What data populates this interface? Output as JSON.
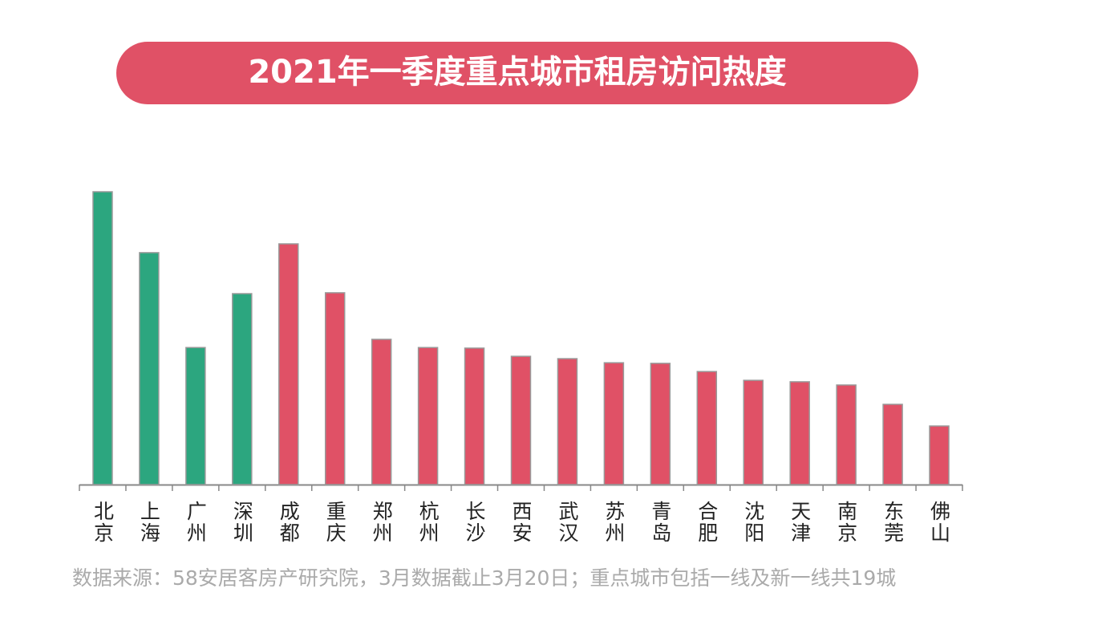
{
  "chart_data": {
    "type": "bar",
    "title": "2021年一季度重点城市租房访问热度",
    "categories": [
      "北京",
      "上海",
      "广州",
      "深圳",
      "成都",
      "重庆",
      "郑州",
      "杭州",
      "长沙",
      "西安",
      "武汉",
      "苏州",
      "青岛",
      "合肥",
      "沈阳",
      "天津",
      "南京",
      "东莞",
      "佛山"
    ],
    "values": [
      100,
      79.2,
      46.8,
      65.2,
      82.2,
      65.5,
      49.6,
      46.8,
      46.6,
      43.8,
      43.0,
      41.6,
      41.4,
      38.6,
      35.6,
      35.1,
      34.0,
      27.4,
      20.0
    ],
    "colors": [
      "#2ca67f",
      "#2ca67f",
      "#2ca67f",
      "#2ca67f",
      "#e05166",
      "#e05166",
      "#e05166",
      "#e05166",
      "#e05166",
      "#e05166",
      "#e05166",
      "#e05166",
      "#e05166",
      "#e05166",
      "#e05166",
      "#e05166",
      "#e05166",
      "#e05166",
      "#e05166"
    ],
    "ylim": [
      0,
      100
    ],
    "source": "数据来源：58安居客房产研究院，3月数据截止3月20日；重点城市包括一线及新一线共19城"
  }
}
